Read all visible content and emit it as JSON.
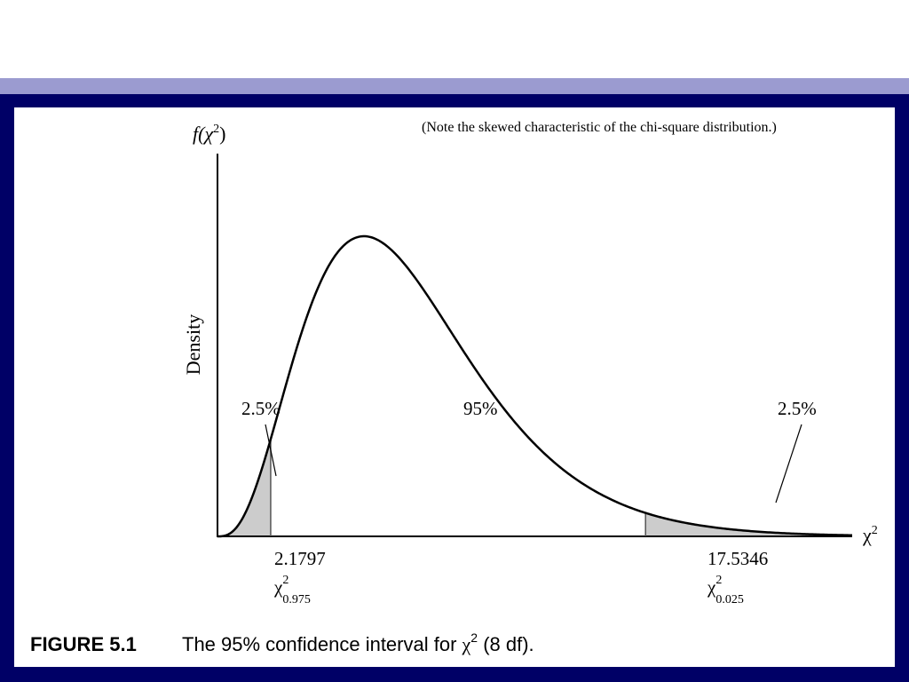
{
  "slide": {
    "note": "(Note the skewed characteristic of the chi-square distribution.)"
  },
  "figure": {
    "y_axis_label_func": "f(χ",
    "y_axis_label_sup": "2",
    "y_axis_label_close": ")",
    "y_axis_title": "Density",
    "x_axis_label_base": "χ",
    "x_axis_label_sup": "2",
    "regions": {
      "left_tail_label": "2.5%",
      "center_label": "95%",
      "right_tail_label": "2.5%"
    },
    "critical_values": {
      "left": {
        "value": "2.1797",
        "symbol": "χ",
        "sup": "2",
        "sub": "0.975"
      },
      "right": {
        "value": "17.5346",
        "symbol": "χ",
        "sup": "2",
        "sub": "0.025"
      }
    },
    "caption": {
      "number": "FIGURE 5.1",
      "text_before": "The 95% confidence interval for ",
      "symbol": "χ",
      "sup": "2",
      "text_after": " (8 df)."
    }
  },
  "distribution": {
    "type": "chi-square",
    "df": 8,
    "x_min": 0,
    "x_max": 26,
    "lower_critical": 2.1797,
    "upper_critical": 17.5346
  },
  "colors": {
    "frame": "#000066",
    "stripe": "#9b9bd0",
    "tail_fill": "#cccccc"
  }
}
